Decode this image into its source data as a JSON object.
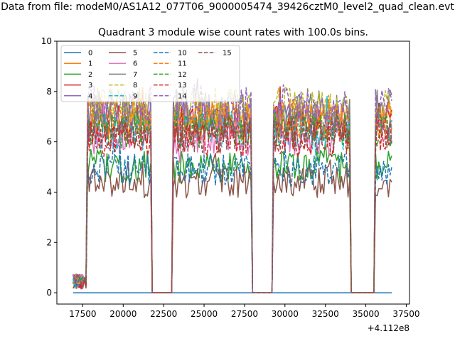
{
  "chart_data": {
    "type": "line",
    "suptitle": "Data from file: modeM0/AS1A12_077T06_9000005474_39426cztM0_level2_quad_clean.evt",
    "title": "Quadrant 3 module wise count rates with 100.0s bins.",
    "xlabel": "",
    "ylabel": "",
    "x_offset_label": "+4.112e8",
    "xlim": [
      15900,
      37700
    ],
    "ylim": [
      -0.45,
      10.0
    ],
    "x_ticks": [
      17500,
      20000,
      22500,
      25000,
      27500,
      30000,
      32500,
      35000,
      37500
    ],
    "x_tick_labels": [
      "17500",
      "20000",
      "22500",
      "25000",
      "27500",
      "30000",
      "32500",
      "35000",
      "37500"
    ],
    "y_ticks": [
      0,
      2,
      4,
      6,
      8,
      10
    ],
    "y_tick_labels": [
      "0",
      "2",
      "4",
      "6",
      "8",
      "10"
    ],
    "x_start": 16900,
    "x_step": 100,
    "n_points": 198,
    "gaps": [
      [
        21800,
        23000
      ],
      [
        28000,
        29200
      ],
      [
        34100,
        35500
      ]
    ],
    "legend_position": "upper-left",
    "legend_columns": 4,
    "series": [
      {
        "name": "0",
        "color": "#1f77b4",
        "style": "solid",
        "level": 0.0
      },
      {
        "name": "1",
        "color": "#ff7f0e",
        "style": "solid",
        "level": 7.0
      },
      {
        "name": "2",
        "color": "#2ca02c",
        "style": "solid",
        "level": 5.0
      },
      {
        "name": "3",
        "color": "#d62728",
        "style": "solid",
        "level": 6.7
      },
      {
        "name": "4",
        "color": "#9467bd",
        "style": "solid",
        "level": 6.9
      },
      {
        "name": "5",
        "color": "#8c564b",
        "style": "solid",
        "level": 4.4
      },
      {
        "name": "6",
        "color": "#e377c2",
        "style": "solid",
        "level": 6.2
      },
      {
        "name": "7",
        "color": "#7f7f7f",
        "style": "solid",
        "level": 7.3
      },
      {
        "name": "8",
        "color": "#bcbd22",
        "style": "dashed",
        "level": 7.4
      },
      {
        "name": "9",
        "color": "#17becf",
        "style": "dashed",
        "level": 6.4
      },
      {
        "name": "10",
        "color": "#1f77b4",
        "style": "dashed",
        "level": 4.9
      },
      {
        "name": "11",
        "color": "#ff7f0e",
        "style": "dashed",
        "level": 6.8
      },
      {
        "name": "12",
        "color": "#2ca02c",
        "style": "dashed",
        "level": 6.5
      },
      {
        "name": "13",
        "color": "#d62728",
        "style": "dashed",
        "level": 6.1
      },
      {
        "name": "14",
        "color": "#9467bd",
        "style": "dashed",
        "level": 7.5
      },
      {
        "name": "15",
        "color": "#8c564b",
        "style": "dashed",
        "level": 6.3
      }
    ]
  }
}
